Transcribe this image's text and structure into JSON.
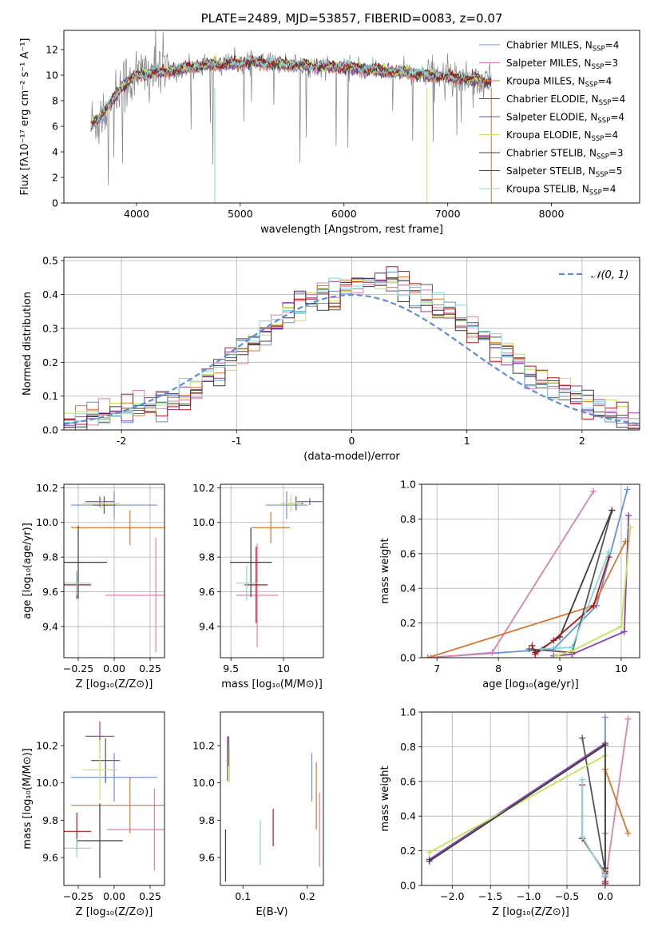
{
  "colors": [
    "#6a8fdd",
    "#e07fb0",
    "#d9752a",
    "#555555",
    "#8e3fb0",
    "#c9e05a",
    "#3c3c3c",
    "#b2181b",
    "#7fd8d8"
  ],
  "chart_data": [
    {
      "type": "line",
      "title": "PLATE=2489, MJD=53857, FIBERID=0083, z=0.07",
      "xlabel": "wavelength [Angstrom, rest frame]",
      "ylabel": "Flux [fλ10⁻¹⁷ erg cm⁻² s⁻¹ A⁻¹]",
      "xlim": [
        3300,
        8850
      ],
      "ylim": [
        0,
        13.5
      ],
      "xticks": [
        4000,
        5000,
        6000,
        7000,
        8000
      ],
      "yticks": [
        0,
        2,
        4,
        6,
        8,
        10,
        12
      ],
      "legend_position": "top-right",
      "legend": [
        "Chabrier MILES, N_SSP=4",
        "Salpeter MILES, N_SSP=3",
        "Kroupa MILES, N_SSP=4",
        "Chabrier ELODIE, N_SSP=4",
        "Salpeter ELODIE, N_SSP=4",
        "Kroupa ELODIE, N_SSP=4",
        "Chabrier STELIB, N_SSP=3",
        "Salpeter STELIB, N_SSP=5",
        "Kroupa STELIB, N_SSP=4"
      ],
      "continuum": {
        "x": [
          3560,
          3650,
          3750,
          3850,
          3950,
          4050,
          4150,
          4300,
          4500,
          4700,
          4900,
          5100,
          5300,
          5500,
          5700,
          6000,
          6300,
          6600,
          6900,
          7200,
          7400
        ],
        "y": [
          6.0,
          6.8,
          7.8,
          9.0,
          9.8,
          10.0,
          10.2,
          10.3,
          10.6,
          10.8,
          10.9,
          11.0,
          10.9,
          10.8,
          10.7,
          10.6,
          10.4,
          10.2,
          9.9,
          9.7,
          9.5
        ]
      },
      "grid": false
    },
    {
      "type": "histogram",
      "xlabel": "(data-model)/error",
      "ylabel": "Normed distribution",
      "xlim": [
        -2.5,
        2.5
      ],
      "ylim": [
        0,
        0.51
      ],
      "xticks": [
        -2,
        -1,
        0,
        1,
        2
      ],
      "yticks": [
        0.0,
        0.1,
        0.2,
        0.3,
        0.4,
        0.5
      ],
      "bin_width": 0.1,
      "reference_curve": "N(0,1)",
      "legend": [
        "𝒩(0, 1)"
      ],
      "legend_position": "top-right",
      "grid": true,
      "envelope": {
        "x": [
          -2.5,
          -2.0,
          -1.5,
          -1.0,
          -0.5,
          0.0,
          0.3,
          0.6,
          1.0,
          1.5,
          2.0,
          2.5
        ],
        "y": [
          0.02,
          0.05,
          0.09,
          0.22,
          0.36,
          0.42,
          0.45,
          0.4,
          0.31,
          0.18,
          0.08,
          0.02
        ]
      }
    },
    {
      "type": "scatter",
      "xlabel": "Z [log₁₀(Z/Z⊙)]",
      "ylabel": "age  [log₁₀(age/yr)]",
      "xlim": [
        -0.35,
        0.35
      ],
      "ylim": [
        9.22,
        10.22
      ],
      "xticks": [
        -0.25,
        0.0,
        0.25
      ],
      "yticks": [
        9.4,
        9.6,
        9.8,
        10.0,
        10.2
      ],
      "xtick_labels": [
        "−0.25",
        "0.00",
        "0.25"
      ],
      "points": [
        {
          "x": 0.0,
          "y": 10.1,
          "xerr": 0.3,
          "yerr": 0.08
        },
        {
          "x": 0.29,
          "y": 9.58,
          "xerr": 0.35,
          "yerr": 0.33
        },
        {
          "x": 0.11,
          "y": 9.97,
          "xerr": 0.41,
          "yerr": 0.1
        },
        {
          "x": -0.07,
          "y": 10.1,
          "xerr": 0.08,
          "yerr": 0.05
        },
        {
          "x": -0.1,
          "y": 10.12,
          "xerr": 0.1,
          "yerr": 0.03
        },
        {
          "x": -0.09,
          "y": 10.11,
          "xerr": 0.13,
          "yerr": 0.03
        },
        {
          "x": -0.25,
          "y": 9.77,
          "xerr": 0.2,
          "yerr": 0.21
        },
        {
          "x": -0.26,
          "y": 9.64,
          "xerr": 0.1,
          "yerr": 0.08
        },
        {
          "x": -0.26,
          "y": 9.65,
          "xerr": 0.1,
          "yerr": 0.07
        }
      ],
      "grid": true
    },
    {
      "type": "scatter",
      "xlabel": "mass [log₁₀(M/M⊙)]",
      "xlim": [
        9.4,
        10.38
      ],
      "ylim": [
        9.22,
        10.22
      ],
      "xticks": [
        9.5,
        10.0
      ],
      "yticks": [
        9.4,
        9.6,
        9.8,
        10.0,
        10.2
      ],
      "points": [
        {
          "x": 10.03,
          "y": 10.1,
          "xerr": 0.2,
          "yerr": 0.08
        },
        {
          "x": 9.75,
          "y": 9.58,
          "xerr": 0.2,
          "yerr": 0.3
        },
        {
          "x": 9.88,
          "y": 9.97,
          "xerr": 0.18,
          "yerr": 0.09
        },
        {
          "x": 10.12,
          "y": 10.11,
          "xerr": 0.07,
          "yerr": 0.04
        },
        {
          "x": 10.25,
          "y": 10.12,
          "xerr": 0.12,
          "yerr": 0.02
        },
        {
          "x": 10.07,
          "y": 10.11,
          "xerr": 0.1,
          "yerr": 0.05
        },
        {
          "x": 9.69,
          "y": 9.77,
          "xerr": 0.2,
          "yerr": 0.2
        },
        {
          "x": 9.74,
          "y": 9.64,
          "xerr": 0.11,
          "yerr": 0.22
        },
        {
          "x": 9.65,
          "y": 9.65,
          "xerr": 0.1,
          "yerr": 0.1
        }
      ],
      "grid": true
    },
    {
      "type": "line",
      "xlabel": "age  [log₁₀(age/yr)]",
      "ylabel": "mass weight",
      "xlim": [
        6.75,
        10.3
      ],
      "ylim": [
        0,
        1
      ],
      "xticks": [
        7,
        8,
        9,
        10
      ],
      "yticks": [
        0.0,
        0.2,
        0.4,
        0.6,
        0.8,
        1.0
      ],
      "series": [
        {
          "x": [
            6.85,
            8.9,
            9.6,
            10.1
          ],
          "y": [
            0.0,
            0.05,
            0.3,
            0.97
          ]
        },
        {
          "x": [
            6.9,
            7.9,
            9.55
          ],
          "y": [
            0.0,
            0.03,
            0.96
          ]
        },
        {
          "x": [
            6.85,
            9.55,
            10.07
          ],
          "y": [
            0.0,
            0.3,
            0.67
          ]
        },
        {
          "x": [
            8.5,
            9.2,
            9.85
          ],
          "y": [
            0.05,
            0.03,
            0.85
          ]
        },
        {
          "x": [
            8.9,
            9.2,
            10.05,
            10.12
          ],
          "y": [
            0.01,
            0.02,
            0.15,
            0.82
          ]
        },
        {
          "x": [
            8.95,
            9.2,
            10.0,
            10.15
          ],
          "y": [
            0.01,
            0.04,
            0.18,
            0.75
          ]
        },
        {
          "x": [
            8.6,
            9.0,
            9.85
          ],
          "y": [
            0.03,
            0.12,
            0.85
          ]
        },
        {
          "x": [
            8.55,
            8.6,
            8.9,
            9.55,
            9.8
          ],
          "y": [
            0.07,
            0.02,
            0.1,
            0.3,
            0.58
          ]
        },
        {
          "x": [
            8.7,
            9.2,
            9.8
          ],
          "y": [
            0.05,
            0.06,
            0.61
          ]
        }
      ],
      "grid": true
    },
    {
      "type": "scatter",
      "xlabel": "Z [log₁₀(Z/Z⊙)]",
      "ylabel": "mass [log₁₀(M/M⊙)]",
      "xlim": [
        -0.35,
        0.35
      ],
      "ylim": [
        9.45,
        10.38
      ],
      "xticks": [
        -0.25,
        0.0,
        0.25
      ],
      "yticks": [
        9.6,
        9.8,
        10.0,
        10.2
      ],
      "xtick_labels": [
        "−0.25",
        "0.00",
        "0.25"
      ],
      "points": [
        {
          "x": 0.0,
          "y": 10.03,
          "xerr": 0.3,
          "yerr": 0.13
        },
        {
          "x": 0.28,
          "y": 9.75,
          "xerr": 0.33,
          "yerr": 0.22
        },
        {
          "x": 0.11,
          "y": 9.88,
          "xerr": 0.41,
          "yerr": 0.15
        },
        {
          "x": -0.06,
          "y": 10.12,
          "xerr": 0.1,
          "yerr": 0.12
        },
        {
          "x": -0.1,
          "y": 10.25,
          "xerr": 0.1,
          "yerr": 0.08
        },
        {
          "x": -0.1,
          "y": 10.07,
          "xerr": 0.12,
          "yerr": 0.16
        },
        {
          "x": -0.1,
          "y": 9.69,
          "xerr": 0.16,
          "yerr": 0.2
        },
        {
          "x": -0.26,
          "y": 9.74,
          "xerr": 0.1,
          "yerr": 0.1
        },
        {
          "x": -0.26,
          "y": 9.65,
          "xerr": 0.1,
          "yerr": 0.05
        }
      ],
      "grid": false
    },
    {
      "type": "scatter",
      "xlabel": "E(B-V)",
      "xlim": [
        0.065,
        0.225
      ],
      "ylim": [
        9.45,
        10.38
      ],
      "xticks": [
        0.1,
        0.2
      ],
      "yticks": [
        9.6,
        9.8,
        10.0,
        10.2
      ],
      "points": [
        {
          "x": 0.207,
          "y": 10.03,
          "yerr": 0.13
        },
        {
          "x": 0.219,
          "y": 9.75,
          "yerr": 0.2
        },
        {
          "x": 0.214,
          "y": 9.93,
          "yerr": 0.18
        },
        {
          "x": 0.076,
          "y": 10.13,
          "yerr": 0.12
        },
        {
          "x": 0.078,
          "y": 10.17,
          "yerr": 0.08
        },
        {
          "x": 0.079,
          "y": 10.1,
          "yerr": 0.1
        },
        {
          "x": 0.073,
          "y": 9.61,
          "yerr": 0.14
        },
        {
          "x": 0.147,
          "y": 9.76,
          "yerr": 0.1
        },
        {
          "x": 0.127,
          "y": 9.68,
          "yerr": 0.12
        }
      ],
      "grid": false
    },
    {
      "type": "line",
      "xlabel": "Z [log₁₀(Z/Z⊙)]",
      "ylabel": "mass weight",
      "xlim": [
        -2.4,
        0.45
      ],
      "ylim": [
        0,
        1
      ],
      "xticks": [
        -2.0,
        -1.5,
        -1.0,
        -0.5,
        0.0
      ],
      "yticks": [
        0.0,
        0.2,
        0.4,
        0.6,
        0.8,
        1.0
      ],
      "xtick_labels": [
        "−2.0",
        "−1.5",
        "−1.0",
        "−0.5",
        "0.0"
      ],
      "series": [
        {
          "x": [
            0.0,
            0.0,
            0.0,
            0.0
          ],
          "y": [
            0.97,
            0.05,
            0.02,
            0.3
          ]
        },
        {
          "x": [
            0.0,
            0.3
          ],
          "y": [
            0.01,
            0.96
          ]
        },
        {
          "x": [
            0.0,
            0.0,
            0.3
          ],
          "y": [
            0.01,
            0.67,
            0.3
          ]
        },
        {
          "x": [
            -0.3,
            0.0
          ],
          "y": [
            0.85,
            0.08
          ]
        },
        {
          "x": [
            -2.3,
            0.0,
            0.0
          ],
          "y": [
            0.15,
            0.82,
            0.01
          ]
        },
        {
          "x": [
            -2.3,
            0.0,
            0.0
          ],
          "y": [
            0.19,
            0.75,
            0.03
          ]
        },
        {
          "x": [
            -2.3,
            0.0,
            0.0
          ],
          "y": [
            0.14,
            0.81,
            0.1
          ]
        },
        {
          "x": [
            -0.3,
            -0.3,
            0.0,
            0.0
          ],
          "y": [
            0.58,
            0.27,
            0.07,
            0.02
          ]
        },
        {
          "x": [
            -0.3,
            -0.3,
            0.0
          ],
          "y": [
            0.61,
            0.28,
            0.06
          ]
        }
      ],
      "grid": true
    }
  ]
}
